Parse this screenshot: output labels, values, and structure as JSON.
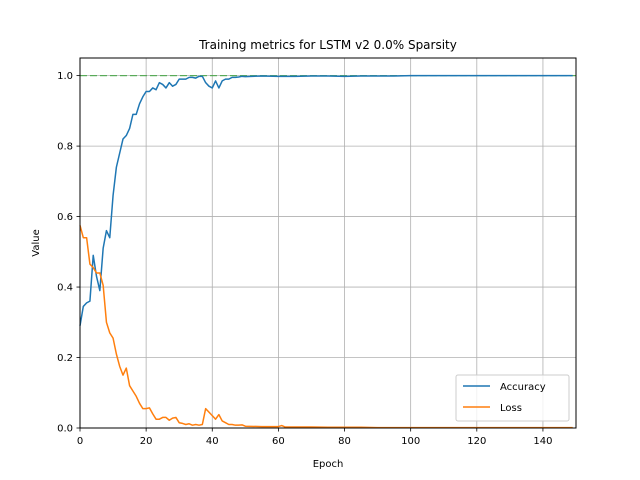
{
  "chart_data": {
    "type": "line",
    "title": "Training metrics for LSTM v2 0.0% Sparsity",
    "xlabel": "Epoch",
    "ylabel": "Value",
    "xlim": [
      0,
      150
    ],
    "ylim": [
      0,
      1.05
    ],
    "xticks": [
      0,
      20,
      40,
      60,
      80,
      100,
      120,
      140
    ],
    "yticks": [
      0.0,
      0.2,
      0.4,
      0.6,
      0.8,
      1.0
    ],
    "xtick_labels": [
      "0",
      "20",
      "40",
      "60",
      "80",
      "100",
      "120",
      "140"
    ],
    "ytick_labels": [
      "0.0",
      "0.2",
      "0.4",
      "0.6",
      "0.8",
      "1.0"
    ],
    "grid": true,
    "legend": "lower-right",
    "reference_line": {
      "y": 1.0,
      "style": "dashed",
      "color": "#2ca02c"
    },
    "series": [
      {
        "name": "Accuracy",
        "color": "#1f77b4",
        "x": [
          0,
          1,
          2,
          3,
          4,
          5,
          6,
          7,
          8,
          9,
          10,
          11,
          12,
          13,
          14,
          15,
          16,
          17,
          18,
          19,
          20,
          21,
          22,
          23,
          24,
          25,
          26,
          27,
          28,
          29,
          30,
          31,
          32,
          33,
          34,
          35,
          36,
          37,
          38,
          39,
          40,
          41,
          42,
          43,
          44,
          45,
          46,
          47,
          48,
          49,
          50,
          55,
          60,
          65,
          70,
          75,
          80,
          85,
          90,
          95,
          100,
          110,
          120,
          130,
          140,
          149
        ],
        "y": [
          0.29,
          0.345,
          0.355,
          0.36,
          0.49,
          0.43,
          0.39,
          0.51,
          0.56,
          0.54,
          0.66,
          0.74,
          0.78,
          0.82,
          0.83,
          0.85,
          0.89,
          0.89,
          0.92,
          0.94,
          0.955,
          0.955,
          0.965,
          0.96,
          0.98,
          0.975,
          0.965,
          0.98,
          0.97,
          0.975,
          0.99,
          0.99,
          0.99,
          0.995,
          0.995,
          0.993,
          0.998,
          0.998,
          0.98,
          0.97,
          0.965,
          0.985,
          0.965,
          0.985,
          0.99,
          0.99,
          0.995,
          0.995,
          0.996,
          0.998,
          0.997,
          0.999,
          0.998,
          0.998,
          0.999,
          0.999,
          0.998,
          0.999,
          0.999,
          0.999,
          1.0,
          1.0,
          1.0,
          1.0,
          1.0,
          1.0
        ]
      },
      {
        "name": "Loss",
        "color": "#ff7f0e",
        "x": [
          0,
          1,
          2,
          3,
          4,
          5,
          6,
          7,
          8,
          9,
          10,
          11,
          12,
          13,
          14,
          15,
          16,
          17,
          18,
          19,
          20,
          21,
          22,
          23,
          24,
          25,
          26,
          27,
          28,
          29,
          30,
          31,
          32,
          33,
          34,
          35,
          36,
          37,
          38,
          39,
          40,
          41,
          42,
          43,
          44,
          45,
          46,
          47,
          48,
          49,
          50,
          55,
          60,
          61,
          62,
          65,
          70,
          75,
          80,
          85,
          90,
          95,
          100,
          110,
          120,
          130,
          140,
          149
        ],
        "y": [
          0.575,
          0.54,
          0.54,
          0.465,
          0.455,
          0.44,
          0.44,
          0.405,
          0.3,
          0.27,
          0.255,
          0.21,
          0.175,
          0.15,
          0.17,
          0.12,
          0.105,
          0.09,
          0.07,
          0.055,
          0.055,
          0.057,
          0.04,
          0.025,
          0.025,
          0.03,
          0.03,
          0.022,
          0.028,
          0.03,
          0.015,
          0.013,
          0.01,
          0.012,
          0.008,
          0.01,
          0.008,
          0.01,
          0.055,
          0.045,
          0.035,
          0.025,
          0.038,
          0.02,
          0.015,
          0.01,
          0.01,
          0.008,
          0.008,
          0.009,
          0.005,
          0.004,
          0.004,
          0.007,
          0.003,
          0.003,
          0.003,
          0.002,
          0.002,
          0.002,
          0.001,
          0.001,
          0.001,
          0.001,
          0.001,
          0.001,
          0.001,
          0.001
        ]
      }
    ]
  }
}
